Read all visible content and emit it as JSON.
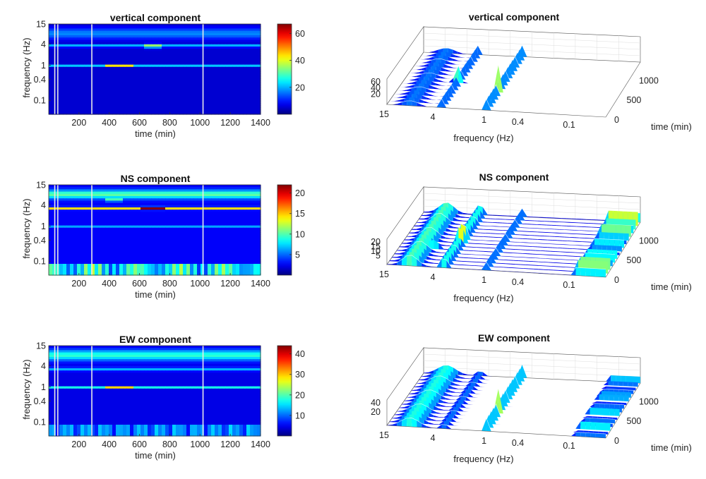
{
  "chart_data": [
    {
      "type": "heatmap",
      "title": "vertical component",
      "xlabel": "time (min)",
      "ylabel": "frequency (Hz)",
      "xlim": [
        0,
        1400
      ],
      "x_ticks": [
        "200",
        "400",
        "600",
        "800",
        "1000",
        "1200",
        "1400"
      ],
      "y_scale": "log",
      "ylim": [
        0.04,
        15
      ],
      "y_ticks": [
        "15",
        "4",
        "1",
        "0.4",
        "0.1"
      ],
      "colorbar": {
        "range": [
          0,
          67
        ],
        "ticks": [
          "20",
          "40",
          "60"
        ]
      },
      "peak_bands_hz": [
        1.0,
        3.5
      ],
      "max_hotspot": {
        "time_min": [
          380,
          560
        ],
        "frequency_hz": 1.0
      }
    },
    {
      "type": "surface",
      "title": "vertical component",
      "xlabel": "frequency (Hz)",
      "ylabel": "time (min)",
      "x_ticks": [
        "15",
        "4",
        "1",
        "0.4",
        "0.1"
      ],
      "y_ticks": [
        "0",
        "500",
        "1000"
      ],
      "z_ticks": [
        "20",
        "40",
        "60"
      ]
    },
    {
      "type": "heatmap",
      "title": "NS component",
      "xlabel": "time (min)",
      "ylabel": "frequency (Hz)",
      "xlim": [
        0,
        1400
      ],
      "x_ticks": [
        "200",
        "400",
        "600",
        "800",
        "1000",
        "1200",
        "1400"
      ],
      "y_scale": "log",
      "ylim": [
        0.04,
        15
      ],
      "y_ticks": [
        "15",
        "4",
        "1",
        "0.4",
        "0.1"
      ],
      "colorbar": {
        "range": [
          0,
          22
        ],
        "ticks": [
          "5",
          "10",
          "15",
          "20"
        ]
      },
      "peak_bands_hz": [
        3.2,
        1.0,
        8.0
      ],
      "max_hotspot": {
        "time_min": [
          600,
          760
        ],
        "frequency_hz": 3.2
      }
    },
    {
      "type": "surface",
      "title": "NS component",
      "xlabel": "frequency (Hz)",
      "ylabel": "time (min)",
      "x_ticks": [
        "15",
        "4",
        "1",
        "0.4",
        "0.1"
      ],
      "y_ticks": [
        "0",
        "500",
        "1000"
      ],
      "z_ticks": [
        "5",
        "10",
        "15",
        "20"
      ]
    },
    {
      "type": "heatmap",
      "title": "EW component",
      "xlabel": "time (min)",
      "ylabel": "frequency (Hz)",
      "xlim": [
        0,
        1400
      ],
      "x_ticks": [
        "200",
        "400",
        "600",
        "800",
        "1000",
        "1200",
        "1400"
      ],
      "y_scale": "log",
      "ylim": [
        0.04,
        15
      ],
      "y_ticks": [
        "15",
        "4",
        "1",
        "0.4",
        "0.1"
      ],
      "colorbar": {
        "range": [
          0,
          44
        ],
        "ticks": [
          "10",
          "20",
          "30",
          "40"
        ]
      },
      "peak_bands_hz": [
        1.0,
        8.0
      ],
      "max_hotspot": {
        "time_min": [
          380,
          560
        ],
        "frequency_hz": 1.0
      }
    },
    {
      "type": "surface",
      "title": "EW component",
      "xlabel": "frequency (Hz)",
      "ylabel": "time (min)",
      "x_ticks": [
        "15",
        "4",
        "1",
        "0.4",
        "0.1"
      ],
      "y_ticks": [
        "0",
        "500",
        "1000"
      ],
      "z_ticks": [
        "20",
        "40"
      ]
    }
  ],
  "colormap": "jet",
  "data_gaps_min": [
    40,
    60,
    285,
    1020
  ]
}
